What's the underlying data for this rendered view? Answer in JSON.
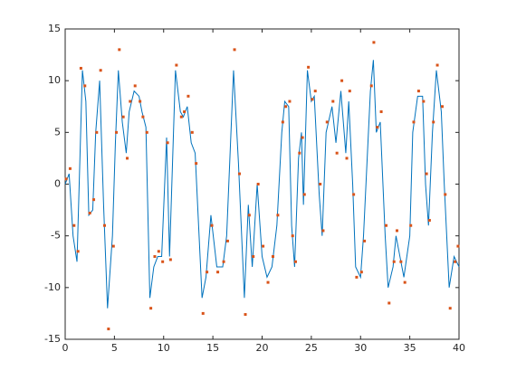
{
  "chart_data": {
    "type": "line",
    "xlim": [
      0,
      40
    ],
    "xticks": [
      0,
      5,
      10,
      15,
      20,
      25,
      30,
      35,
      40
    ],
    "ylim": [
      -15,
      15
    ],
    "yticks": [
      -15,
      -10,
      -5,
      0,
      5,
      10,
      15
    ],
    "grid": false,
    "box": true,
    "series": [
      {
        "type": "line",
        "color": "#0072bd",
        "x": [
          0,
          0.4,
          0.8,
          1.2,
          1.75,
          2.1,
          2.4,
          2.8,
          3.1,
          3.5,
          3.9,
          4.3,
          4.8,
          5.1,
          5.4,
          5.8,
          6.2,
          6.5,
          7.0,
          7.5,
          7.8,
          8.2,
          8.6,
          9.0,
          9.4,
          9.8,
          10.3,
          10.6,
          11.2,
          11.7,
          12.0,
          12.4,
          12.8,
          13.2,
          13.9,
          14.3,
          14.8,
          15.4,
          16.0,
          16.4,
          17.1,
          17.6,
          18.2,
          18.6,
          19.0,
          19.5,
          20.0,
          20.5,
          21.0,
          21.5,
          22.0,
          22.3,
          22.7,
          23.0,
          23.3,
          23.7,
          24.0,
          24.2,
          24.6,
          25.0,
          25.3,
          25.8,
          26.1,
          26.5,
          27.1,
          27.5,
          28.0,
          28.5,
          28.8,
          29.2,
          29.5,
          30.0,
          30.3,
          31.0,
          31.3,
          31.6,
          32.0,
          32.5,
          32.8,
          33.3,
          33.6,
          34.0,
          34.4,
          35.0,
          35.3,
          35.8,
          36.3,
          36.6,
          36.9,
          37.3,
          37.7,
          38.2,
          38.5,
          39.0,
          39.5,
          40
        ],
        "values": [
          0,
          1,
          -5,
          -7.5,
          11,
          8,
          -3,
          -2.5,
          5,
          10,
          -2,
          -12,
          -5,
          4,
          11,
          6,
          3,
          7,
          9,
          8.5,
          7,
          5.5,
          -11,
          -8,
          -7,
          -7,
          4.5,
          -7,
          11,
          7,
          6.5,
          7.5,
          4,
          3,
          -11,
          -9,
          -3,
          -8,
          -8,
          -5,
          11,
          2,
          -11,
          -2,
          -8,
          0,
          -7,
          -9,
          -8,
          -4,
          5,
          8,
          7.5,
          -4,
          -8,
          2.5,
          5,
          -2,
          11,
          8,
          8.5,
          -1,
          -5,
          5,
          7.5,
          4,
          9,
          3,
          8,
          0,
          -8,
          -9,
          -5,
          9,
          12,
          5,
          6,
          -5,
          -10,
          -8,
          -5,
          -7,
          -9,
          -5,
          5,
          8.5,
          8.5,
          0,
          -4,
          5,
          11,
          7,
          0,
          -10,
          -7,
          -8
        ]
      },
      {
        "type": "scatter",
        "color": "#d95319",
        "x": [
          0.1,
          0.5,
          0.9,
          1.3,
          1.6,
          2.0,
          2.5,
          2.9,
          3.2,
          3.6,
          4.0,
          4.4,
          4.9,
          5.2,
          5.5,
          5.9,
          6.3,
          6.6,
          7.1,
          7.6,
          7.9,
          8.3,
          8.7,
          9.1,
          9.5,
          9.9,
          10.4,
          10.7,
          11.3,
          11.8,
          12.1,
          12.5,
          12.9,
          13.3,
          14.0,
          14.4,
          14.9,
          15.5,
          16.1,
          16.5,
          17.2,
          17.7,
          18.3,
          18.7,
          19.1,
          19.6,
          20.1,
          20.6,
          21.1,
          21.6,
          22.1,
          22.4,
          22.8,
          23.1,
          23.4,
          23.8,
          24.1,
          24.3,
          24.7,
          25.1,
          25.4,
          25.9,
          26.2,
          26.6,
          27.2,
          27.6,
          28.1,
          28.6,
          28.9,
          29.3,
          29.6,
          30.1,
          30.4,
          31.1,
          31.35,
          31.7,
          32.1,
          32.6,
          32.9,
          33.4,
          33.7,
          34.1,
          34.5,
          35.1,
          35.4,
          35.9,
          36.4,
          36.7,
          37.0,
          37.4,
          37.8,
          38.3,
          38.6,
          39.1,
          39.6,
          39.9
        ],
        "values": [
          0.5,
          1.5,
          -4,
          -6.5,
          11.2,
          9.5,
          -2.8,
          -1.5,
          5,
          11,
          -4,
          -14,
          -6,
          5,
          13,
          6.5,
          2.5,
          8,
          9.5,
          8,
          6.5,
          5,
          -12,
          -7,
          -6.5,
          -7.5,
          4,
          -7.3,
          11.5,
          6.5,
          7,
          8.5,
          5,
          2,
          -12.5,
          -8.5,
          -4,
          -8.5,
          -7.5,
          -5.5,
          13,
          1,
          -12.6,
          -3,
          -7,
          0,
          -6,
          -9.5,
          -7,
          -3,
          6,
          7.5,
          8,
          -5,
          -7.5,
          3,
          4.5,
          -1,
          11.3,
          8.2,
          9,
          0,
          -4.5,
          6,
          8,
          3,
          10,
          2.5,
          9,
          -1,
          -9,
          -8.5,
          -5.5,
          9.5,
          13.7,
          5.5,
          7,
          -4,
          -11.5,
          -7.5,
          -4.5,
          -7.5,
          -9.5,
          -4,
          6,
          9,
          8,
          1,
          -3.5,
          6,
          11.5,
          7.5,
          -1,
          -12,
          -7.5,
          -6
        ]
      }
    ]
  }
}
